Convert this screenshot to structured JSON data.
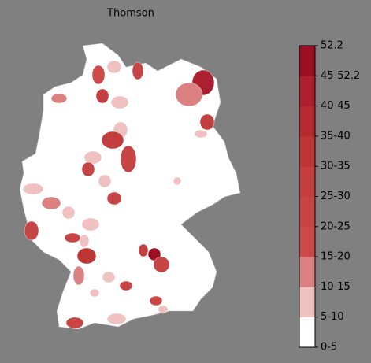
{
  "title": "Thomson",
  "colorbar": {
    "labels": [
      "0-5",
      "5-10",
      "10-15",
      "15-20",
      "20-25",
      "25-30",
      "30-35",
      "35-40",
      "40-45",
      "45-52.2",
      "52.2"
    ],
    "colors": [
      "#ffffff",
      "#efc1c1",
      "#db8181",
      "#cc4a4a",
      "#c84545",
      "#c33f3f",
      "#bd3636",
      "#b52a2f",
      "#ab1f2e",
      "#9a0f22"
    ]
  }
}
